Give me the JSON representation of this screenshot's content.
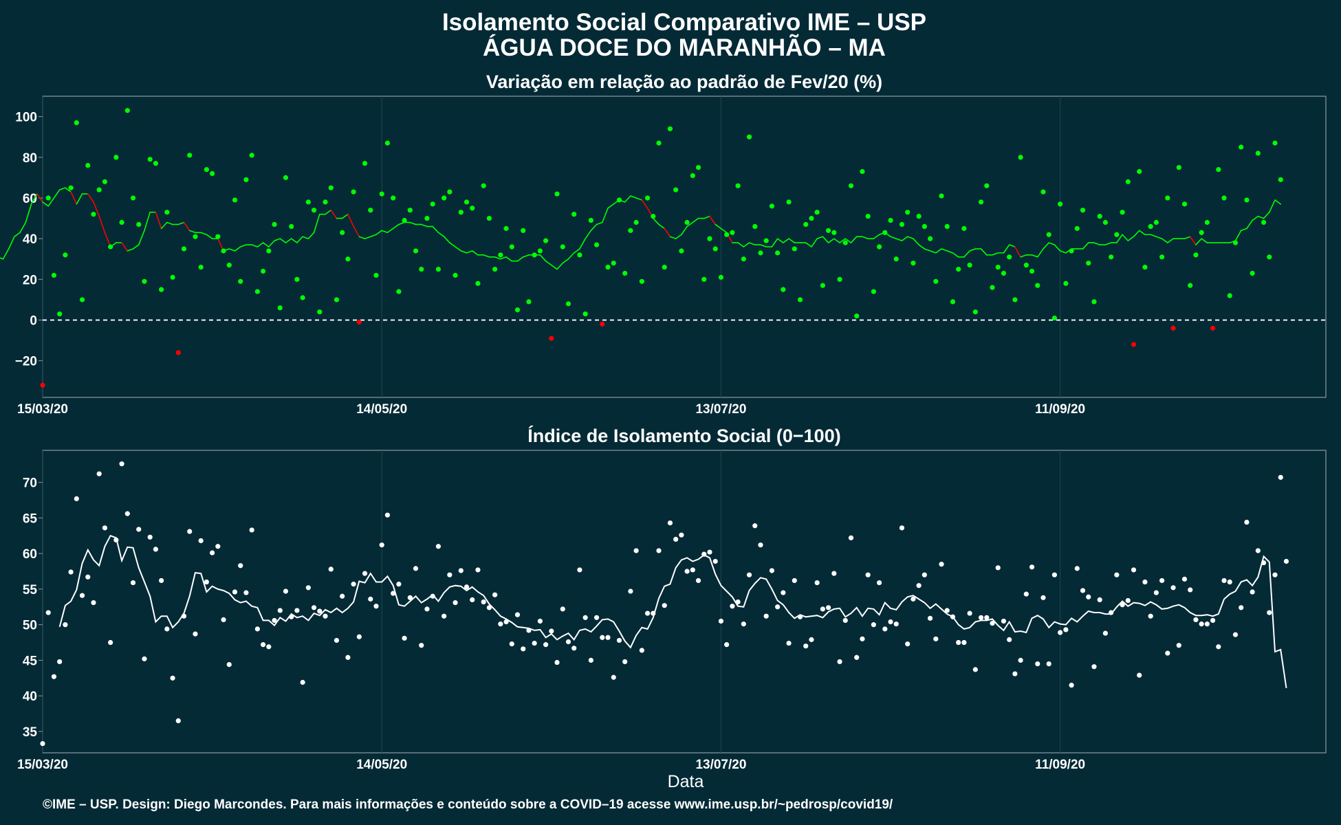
{
  "title": "Isolamento Social Comparativo IME – USP",
  "subtitle": "ÁGUA DOCE DO MARANHÃO – MA",
  "xlabel": "Data",
  "caption": "©IME – USP. Design: Diego Marcondes. Para mais informações e conteúdo sobre a COVID–19 acesse www.ime.usp.br/~pedrosp/covid19/",
  "colors": {
    "background": "#042a36",
    "panel_border": "#8c9ba0",
    "grid": "#1f4650",
    "positive": "#00ff00",
    "negative": "#ff0000",
    "index_series": "#ffffff",
    "zero_line": "#ffffff"
  },
  "chart_data": [
    {
      "type": "scatter",
      "title": "Variação em relação ao padrão de Fev/20 (%)",
      "xlabel": "",
      "ylabel": "",
      "x_start": "2020-03-15",
      "x_end": "2020-10-28",
      "xlim": [
        "2020-03-15",
        "2020-10-28"
      ],
      "ylim": [
        -38,
        110
      ],
      "yticks": [
        100,
        80,
        60,
        40,
        20,
        0,
        -20
      ],
      "ytick_labels": [
        "100",
        "80",
        "60",
        "40",
        "20",
        "0",
        "−20"
      ],
      "xticks": [
        "2020-03-15",
        "2020-05-14",
        "2020-07-13",
        "2020-09-11"
      ],
      "xtick_labels": [
        "15/03/20",
        "14/05/20",
        "13/07/20",
        "11/09/20"
      ],
      "zero_line": true,
      "grid": true,
      "series": [
        {
          "values": [
            -32,
            60,
            22,
            3,
            32,
            65,
            97,
            10,
            76,
            52,
            64,
            68,
            36,
            80,
            48,
            103,
            60,
            47,
            19,
            79,
            77,
            15,
            53,
            21,
            -16,
            35,
            81,
            41,
            26,
            74,
            72,
            41,
            34,
            27,
            59,
            19,
            69,
            81,
            14,
            24,
            34,
            47,
            6,
            70,
            46,
            20,
            11,
            58,
            54,
            4,
            58,
            65,
            10,
            43,
            30,
            63,
            -1,
            77,
            54,
            22,
            62,
            87,
            60,
            14,
            49,
            54,
            34,
            25,
            50,
            57,
            25,
            60,
            63,
            22,
            53,
            58,
            55,
            18,
            66,
            50,
            25,
            32,
            45,
            36,
            5,
            44,
            9,
            32,
            34,
            39,
            -9,
            62,
            36,
            8,
            52,
            32,
            3,
            49,
            37,
            -2,
            26,
            28,
            59,
            23,
            44,
            48,
            19,
            60,
            51,
            87,
            26,
            94,
            64,
            34,
            48,
            71,
            75,
            20,
            40,
            35,
            21,
            42,
            43,
            66,
            30,
            90,
            46,
            33,
            39,
            56,
            33,
            15,
            58,
            35,
            10,
            47,
            50,
            53,
            17,
            44,
            43,
            20,
            38,
            66,
            2,
            73,
            51,
            14,
            36,
            43,
            49,
            30,
            47,
            53,
            28,
            51,
            46,
            40,
            19,
            61,
            46,
            9,
            25,
            45,
            27,
            4,
            58,
            66,
            16,
            26,
            23,
            31,
            10,
            80,
            27,
            24,
            17,
            63,
            42,
            1,
            57,
            18,
            34,
            45,
            54,
            28,
            9,
            51,
            48,
            31,
            42,
            53,
            68,
            -12,
            73,
            26,
            46,
            48,
            31,
            60,
            -4,
            75,
            57,
            17,
            32,
            43,
            48,
            -4,
            74,
            60,
            12,
            38,
            85,
            59,
            23,
            82,
            48,
            31,
            87,
            69
          ],
          "moving_average": [
            34,
            31,
            30,
            35,
            41,
            43,
            48,
            57,
            62,
            58,
            56,
            60,
            64,
            65,
            63,
            57,
            62,
            62,
            58,
            51,
            43,
            36,
            38,
            38,
            34,
            35,
            37,
            44,
            53,
            53,
            45,
            48,
            47,
            47,
            48,
            44,
            43,
            43,
            42,
            40,
            40,
            34,
            35,
            34,
            36,
            37,
            37,
            36,
            38,
            36,
            39,
            40,
            38,
            40,
            38,
            41,
            40,
            43,
            52,
            52,
            54,
            50,
            50,
            52,
            46,
            41,
            40,
            41,
            42,
            44,
            43,
            45,
            47,
            48,
            48,
            47,
            47,
            46,
            46,
            43,
            41,
            38,
            36,
            34,
            33,
            34,
            32,
            32,
            31,
            31,
            30,
            31,
            29,
            29,
            31,
            32,
            32,
            32,
            29,
            27,
            25,
            28,
            30,
            33,
            35,
            40,
            44,
            47,
            48,
            55,
            57,
            59,
            58,
            61,
            60,
            59,
            55,
            50,
            47,
            45,
            41,
            40,
            42,
            46,
            48,
            50,
            50,
            51,
            47,
            45,
            43,
            38,
            38,
            36,
            38,
            37,
            37,
            36,
            36,
            40,
            38,
            40,
            38,
            38,
            38,
            36,
            40,
            41,
            38,
            40,
            38,
            40,
            38,
            41,
            41,
            40,
            40,
            42,
            43,
            41,
            40,
            39,
            41,
            40,
            37,
            35,
            34,
            33,
            35,
            34,
            33,
            31,
            31,
            34,
            35,
            35,
            32,
            32,
            33,
            33,
            37,
            36,
            31,
            32,
            32,
            31,
            35,
            38,
            37,
            34,
            33,
            35,
            35,
            35,
            38,
            38,
            37,
            37,
            38,
            38,
            42,
            39,
            41,
            44,
            42,
            42,
            41,
            40,
            38,
            40,
            40,
            40,
            41,
            37,
            40,
            38,
            38,
            38,
            38,
            38,
            39,
            44,
            45,
            49,
            51,
            50,
            53,
            59,
            57
          ]
        }
      ]
    },
    {
      "type": "scatter",
      "title": "Índice de Isolamento Social (0−100)",
      "xlabel": "Data",
      "ylabel": "",
      "x_start": "2020-03-15",
      "x_end": "2020-10-28",
      "xlim": [
        "2020-03-15",
        "2020-10-28"
      ],
      "ylim": [
        32,
        74.5
      ],
      "yticks": [
        70,
        65,
        60,
        55,
        50,
        45,
        40,
        35
      ],
      "ytick_labels": [
        "70",
        "65",
        "60",
        "55",
        "50",
        "45",
        "40",
        "35"
      ],
      "xticks": [
        "2020-03-15",
        "2020-05-14",
        "2020-07-13",
        "2020-09-11"
      ],
      "xtick_labels": [
        "15/03/20",
        "14/05/20",
        "13/07/20",
        "11/09/20"
      ],
      "grid": true,
      "series": [
        {
          "values": [
            33.3,
            51.7,
            42.7,
            44.8,
            50,
            57.4,
            67.7,
            54.1,
            56.7,
            53.1,
            71.2,
            63.6,
            47.5,
            61.9,
            72.6,
            65.6,
            55.9,
            63.4,
            45.2,
            62.3,
            60.6,
            56.2,
            49.4,
            42.5,
            36.5,
            51.2,
            63.1,
            48.7,
            61.8,
            56,
            60.1,
            61,
            50.7,
            44.4,
            54.6,
            58.3,
            54.5,
            63.3,
            49.4,
            47.2,
            46.9,
            50.6,
            52,
            54.7,
            51.1,
            52,
            41.9,
            55.2,
            52.4,
            51.9,
            51.2,
            57.8,
            47.8,
            54,
            45.4,
            55.7,
            48.3,
            57.2,
            53.6,
            52.6,
            61.2,
            65.4,
            54.4,
            55.7,
            48.1,
            53.8,
            57.9,
            47.1,
            52.2,
            54,
            61,
            51.2,
            57,
            53.1,
            57.6,
            55.3,
            53.5,
            57.7,
            53.2,
            52.4,
            54.2,
            50.1,
            50.4,
            47.3,
            51.4,
            46.6,
            49.2,
            47.4,
            50.5,
            47.2,
            49.1,
            44.7,
            52.2,
            47.6,
            46.7,
            57.7,
            51,
            45,
            51,
            48.2,
            48.2,
            42.6,
            47.8,
            44.8,
            54.7,
            60.4,
            46.4,
            51.6,
            51.6,
            60.4,
            52.7,
            64.3,
            62,
            62.6,
            57.5,
            57.7,
            56.2,
            59.9,
            60.2,
            58.9,
            50.5,
            47.2,
            52.6,
            53.2,
            50.1,
            57,
            63.9,
            61.2,
            51.2,
            57.6,
            52.5,
            54.5,
            47.4,
            56.2,
            51.1,
            47,
            47.9,
            55.9,
            52.2,
            52.4,
            57.2,
            44.8,
            50.6,
            62.2,
            45.4,
            48,
            57,
            50,
            55.9,
            49.4,
            50.4,
            50.1,
            63.6,
            47.3,
            53.6,
            55.5,
            57,
            50.9,
            48,
            58.5,
            52,
            51.1,
            47.5,
            47.5,
            51.6,
            43.7,
            51,
            51,
            50.2,
            58,
            50.5,
            47.9,
            43.1,
            45,
            54.3,
            58.1,
            44.5,
            53.8,
            44.5,
            57,
            48.9,
            49.3,
            41.5,
            57.9,
            54.8,
            53.9,
            44.1,
            53.5,
            48.8,
            51.7,
            57,
            52.8,
            53.4,
            57.7,
            42.9,
            56,
            51.2,
            54.5,
            56.2,
            46,
            55.2,
            47.1,
            56.4,
            54.9,
            50.7,
            50.1,
            50.1,
            50.6,
            46.9,
            56.2,
            56,
            48.6,
            52.4,
            64.4,
            54.6,
            60.4,
            58.7,
            51.7,
            57,
            70.7,
            58.9
          ],
          "moving_average": [
            49.7,
            52.7,
            53.3,
            54.9,
            58.6,
            60.5,
            59.1,
            58.3,
            61,
            62.5,
            62.2,
            59,
            60.9,
            60.8,
            58,
            56,
            54,
            50.4,
            51.2,
            51.2,
            49.6,
            50.4,
            51.6,
            54,
            57.3,
            57.2,
            54.6,
            55.4,
            55,
            54.8,
            54.4,
            53.5,
            53.1,
            53.3,
            52.6,
            52.4,
            50.6,
            50.6,
            49.9,
            51,
            50.5,
            51.5,
            51,
            51.2,
            50.6,
            51.6,
            51.3,
            52.1,
            51.7,
            52.3,
            51.7,
            52.3,
            53.2,
            56.1,
            55.9,
            57.2,
            56,
            56,
            56.8,
            55.5,
            52.8,
            52.6,
            53.3,
            54,
            53.1,
            53.6,
            54.2,
            53.3,
            54.5,
            55.3,
            55.5,
            55.4,
            54.8,
            55.3,
            54.6,
            54.1,
            52.9,
            52.1,
            51.2,
            50.8,
            50.3,
            49.7,
            49.6,
            49.5,
            49.2,
            49.3,
            48.2,
            48.7,
            47.9,
            48.4,
            48.8,
            47.9,
            49.2,
            49.4,
            49,
            49.8,
            50.7,
            50.8,
            50.4,
            49.1,
            47.7,
            46.8,
            48.5,
            49.6,
            49.4,
            51,
            53.7,
            55.4,
            55.7,
            58,
            59.1,
            59.4,
            58.9,
            59.2,
            59.8,
            59.4,
            57.1,
            55.5,
            54.7,
            53.9,
            52.6,
            52.5,
            54.8,
            55.8,
            56.6,
            56.4,
            55,
            53.4,
            52.8,
            51.7,
            50.9,
            51.4,
            51.1,
            51.2,
            51.3,
            51,
            51.8,
            52.2,
            52.3,
            51.1,
            51.6,
            52.4,
            51.2,
            52.3,
            52.2,
            51.4,
            53.1,
            52.3,
            52.1,
            53.2,
            53.9,
            54.1,
            53.6,
            53.1,
            52.3,
            52.9,
            52.2,
            51.5,
            51.1,
            50,
            49.4,
            49.6,
            50.4,
            50.6,
            50.6,
            50.8,
            49.9,
            49.2,
            50.4,
            49,
            49.1,
            48.9,
            50.9,
            51.3,
            50.8,
            49.6,
            50.4,
            50.1,
            50,
            50.9,
            50.4,
            51.2,
            51.9,
            51.7,
            51.7,
            51.5,
            51.5,
            52.5,
            53.3,
            52.6,
            53.1,
            53,
            52.7,
            53.2,
            52.8,
            52.2,
            52.3,
            52.6,
            52.8,
            52.4,
            51.7,
            51.3,
            51.3,
            51.4,
            51.2,
            51.5,
            53.6,
            54.3,
            54.7,
            56,
            56.3,
            55.5,
            56.7,
            59.6,
            58.8,
            46.2,
            46.5,
            41.1
          ]
        }
      ]
    }
  ]
}
